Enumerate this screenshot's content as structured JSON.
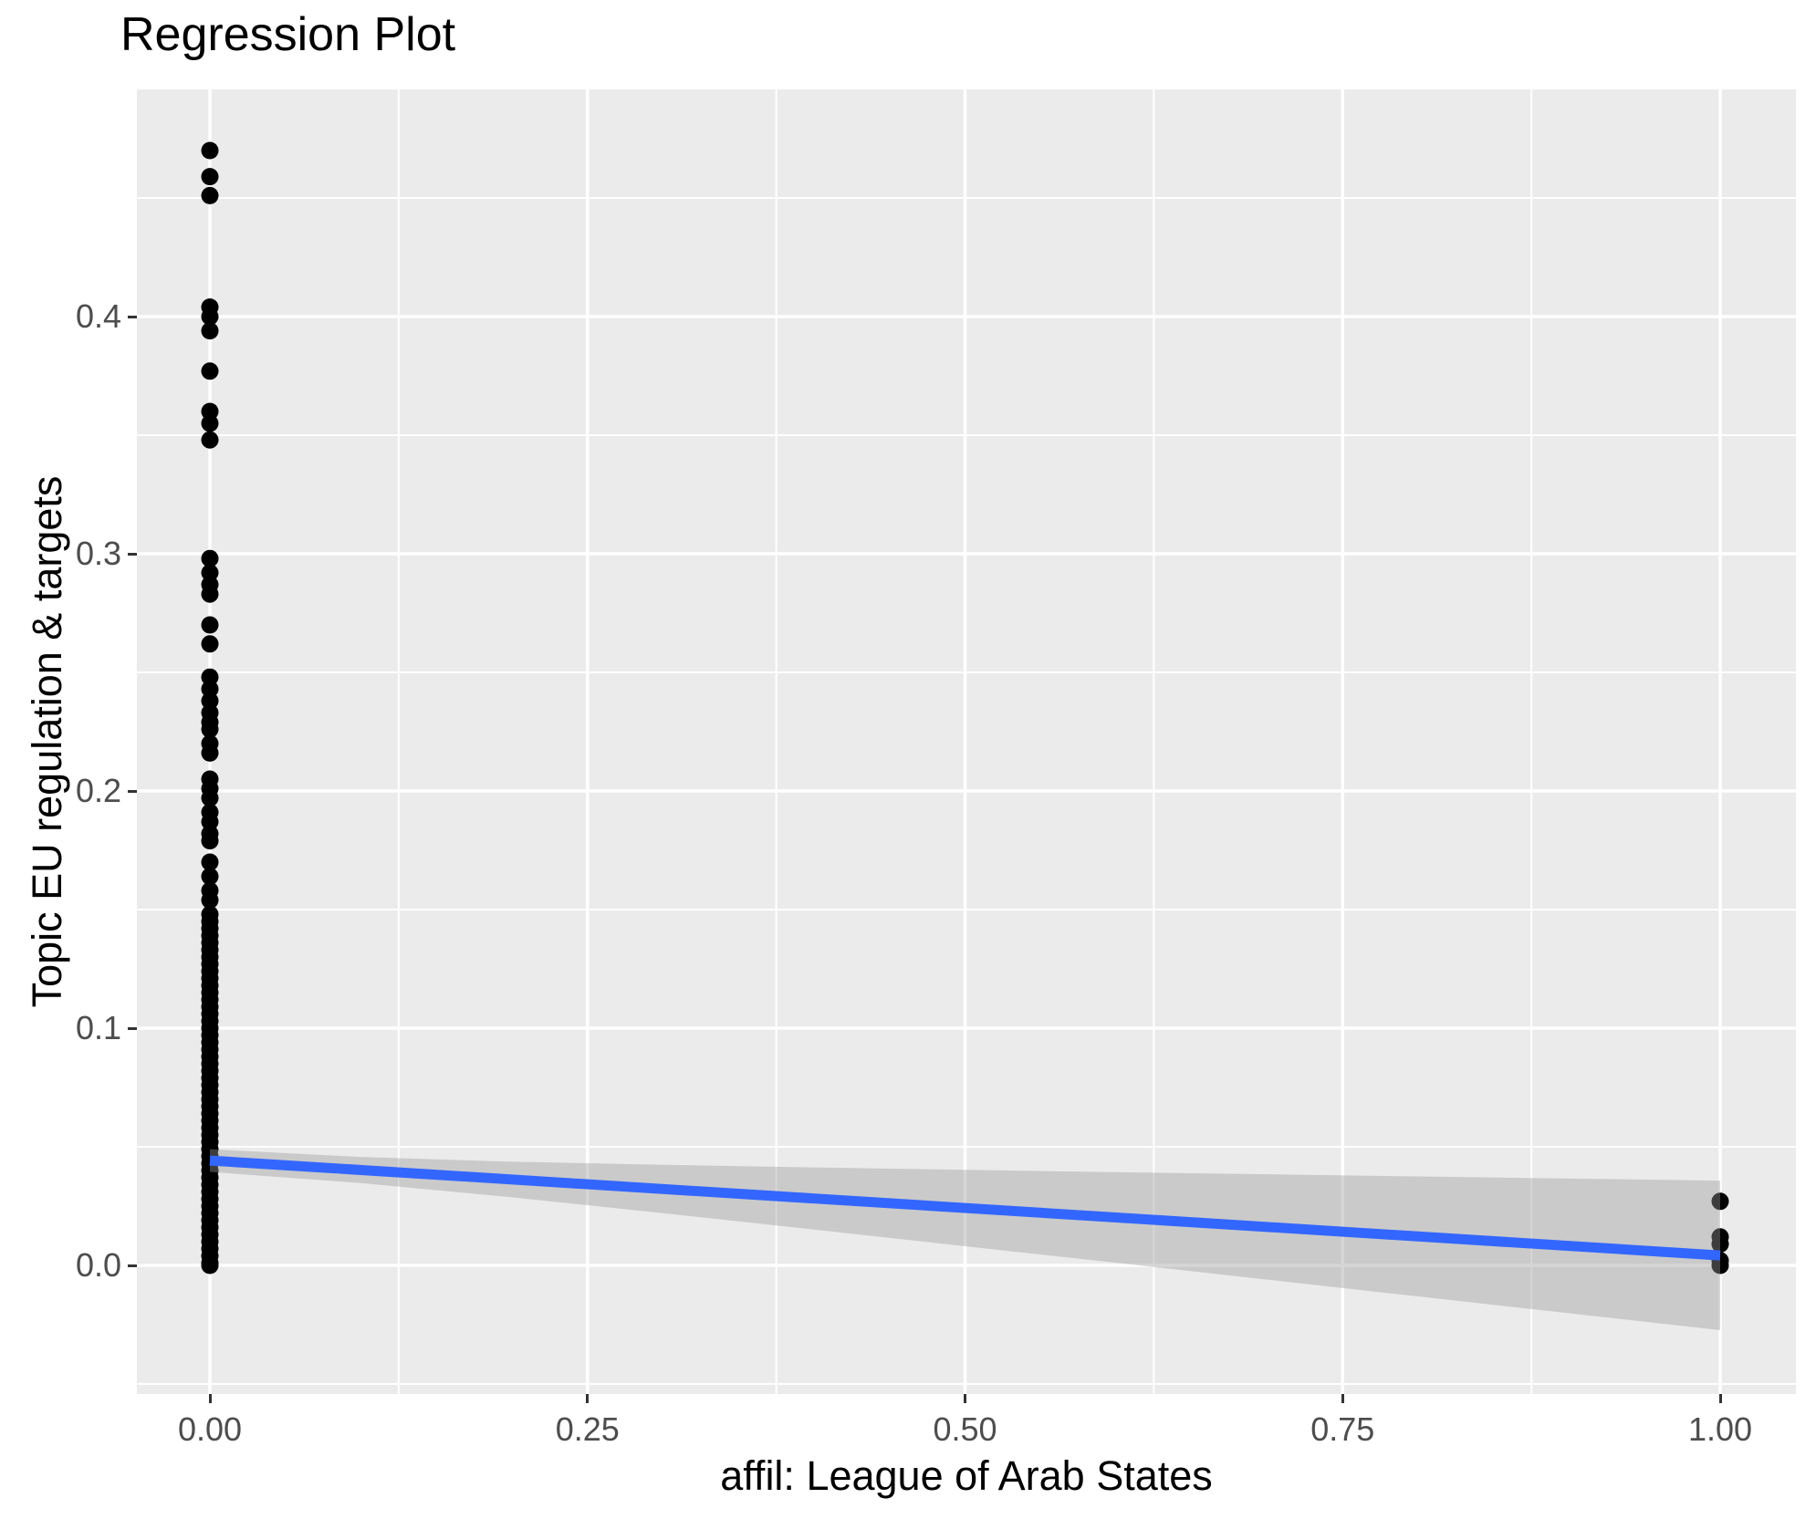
{
  "title": "Regression Plot",
  "axes": {
    "x_title": "affil: League of Arab States",
    "y_title": "Topic EU regulation & targets"
  },
  "style": {
    "panel_background": "#EBEBEB",
    "gridline_color": "#FFFFFF",
    "point_color": "#000000",
    "regression_line_color": "#3366FF",
    "ci_band_fill": "#999999",
    "ci_band_opacity": 0.4,
    "tick_label_color": "#4D4D4D",
    "tick_mark_color": "#333333",
    "title_color": "#000000"
  },
  "chart_data": {
    "type": "scatter",
    "title": "Regression Plot",
    "xlabel": "affil: League of Arab States",
    "ylabel": "Topic EU regulation & targets",
    "xlim": [
      -0.048,
      1.048
    ],
    "ylim": [
      -0.055,
      0.497
    ],
    "grid": "white major and minor gridlines on grey panel",
    "legend": "none",
    "x_tick_labels": [
      "0.00",
      "0.25",
      "0.50",
      "0.75",
      "1.00"
    ],
    "x_tick_values": [
      0,
      0.25,
      0.5,
      0.75,
      1.0
    ],
    "y_tick_labels": [
      "0.0",
      "0.1",
      "0.2",
      "0.3",
      "0.4"
    ],
    "y_tick_values": [
      0,
      0.1,
      0.2,
      0.3,
      0.4
    ],
    "x_minor_gridlines": [
      0.125,
      0.375,
      0.625,
      0.875
    ],
    "y_minor_gridlines": [
      -0.05,
      0.05,
      0.15,
      0.25,
      0.35,
      0.45
    ],
    "series": [
      {
        "name": "observations at affil = 0",
        "x": 0,
        "y": [
          0.47,
          0.459,
          0.451,
          0.404,
          0.4,
          0.394,
          0.377,
          0.36,
          0.355,
          0.348,
          0.298,
          0.292,
          0.287,
          0.283,
          0.27,
          0.262,
          0.248,
          0.243,
          0.238,
          0.233,
          0.229,
          0.226,
          0.22,
          0.216,
          0.205,
          0.201,
          0.197,
          0.191,
          0.187,
          0.182,
          0.179,
          0.17,
          0.164,
          0.158,
          0.154,
          0.148,
          0.145,
          0.142,
          0.139,
          0.136,
          0.133,
          0.13,
          0.127,
          0.124,
          0.121,
          0.118,
          0.115,
          0.112,
          0.109,
          0.106,
          0.103,
          0.1,
          0.097,
          0.094,
          0.091,
          0.088,
          0.085,
          0.082,
          0.079,
          0.076,
          0.073,
          0.07,
          0.067,
          0.064,
          0.061,
          0.058,
          0.055,
          0.052,
          0.049,
          0.046,
          0.043,
          0.04,
          0.037,
          0.034,
          0.031,
          0.028,
          0.025,
          0.022,
          0.019,
          0.016,
          0.013,
          0.01,
          0.007,
          0.004,
          0.001,
          0.0
        ]
      },
      {
        "name": "observations at affil = 1",
        "x": 1,
        "y": [
          0.027,
          0.012,
          0.009,
          0.002,
          0.0
        ]
      }
    ],
    "regression_line": {
      "x": [
        0,
        1
      ],
      "y": [
        0.0442,
        0.0042
      ],
      "color": "#3366FF"
    },
    "ci_band": {
      "x": [
        0,
        0.1,
        0.2,
        0.3,
        0.4,
        0.5,
        0.6,
        0.7,
        0.8,
        0.9,
        1.0
      ],
      "upper": [
        0.049,
        0.0457,
        0.0437,
        0.0424,
        0.0413,
        0.0403,
        0.0393,
        0.0384,
        0.0375,
        0.0366,
        0.0357
      ],
      "lower": [
        0.0394,
        0.0347,
        0.0287,
        0.022,
        0.0151,
        0.0081,
        0.0011,
        -0.006,
        -0.0131,
        -0.0202,
        -0.0273
      ]
    }
  }
}
